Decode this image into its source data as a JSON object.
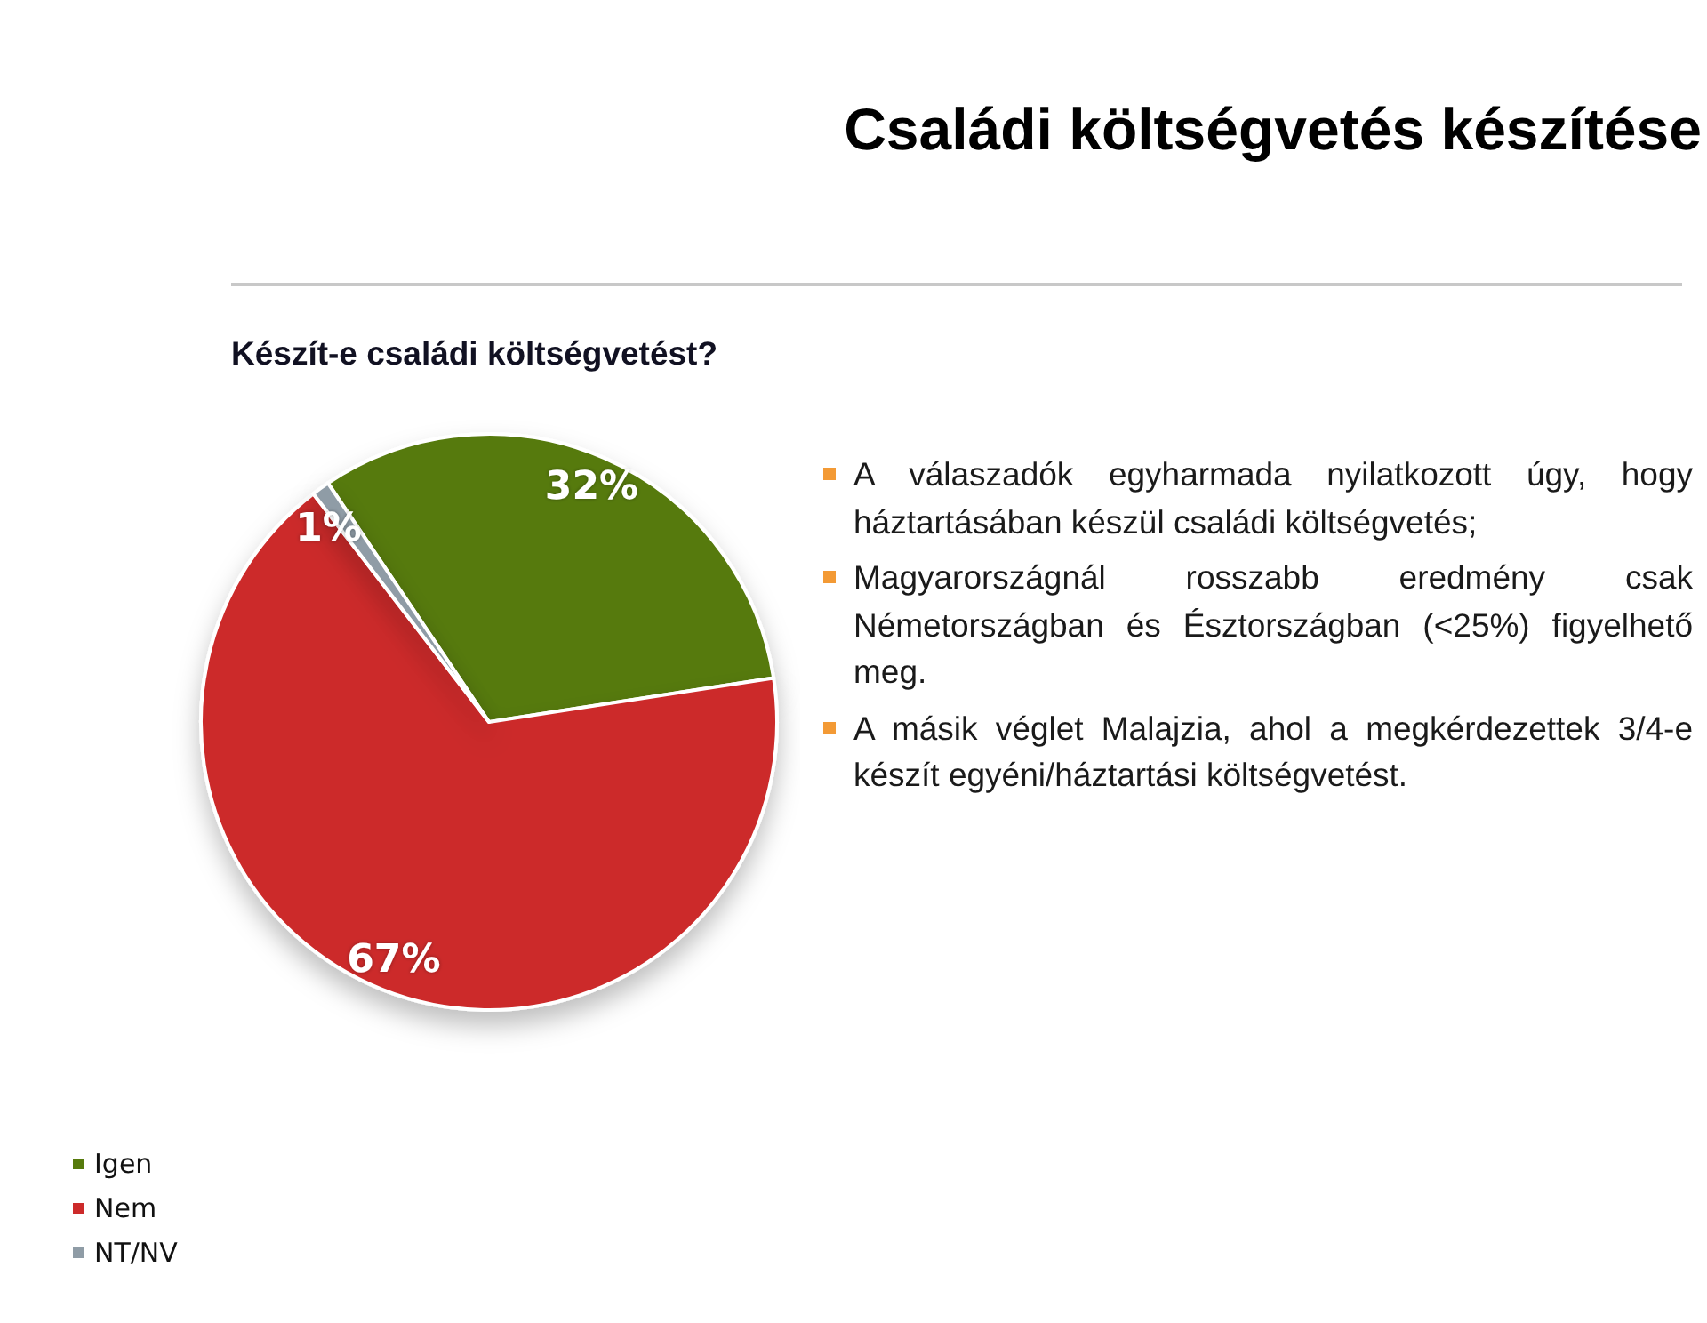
{
  "chart_data": {
    "type": "pie",
    "title": "Családi költségvetés készítése",
    "subtitle": "Készít-e családi költségvetést?",
    "categories": [
      "Igen",
      "Nem",
      "NT/NV"
    ],
    "values": [
      32,
      67,
      1
    ],
    "colors": [
      "#567a0c",
      "#cc2a2a",
      "#8f9ca6"
    ],
    "value_labels": [
      "32%",
      "67%",
      "1%"
    ],
    "legend": "bottom left",
    "annotations": [
      "A válaszadók egyharmada nyilatkozott úgy, hogy háztartásában készül családi költségvetés;",
      "Magyarországnál rosszabb eredmény csak Németországban és Észtországban (<25%) figyelhető meg.",
      "A másik véglet Malajzia, ahol a megkérdezettek 3/4-e készít egyéni/háztartási költségvetést."
    ]
  }
}
